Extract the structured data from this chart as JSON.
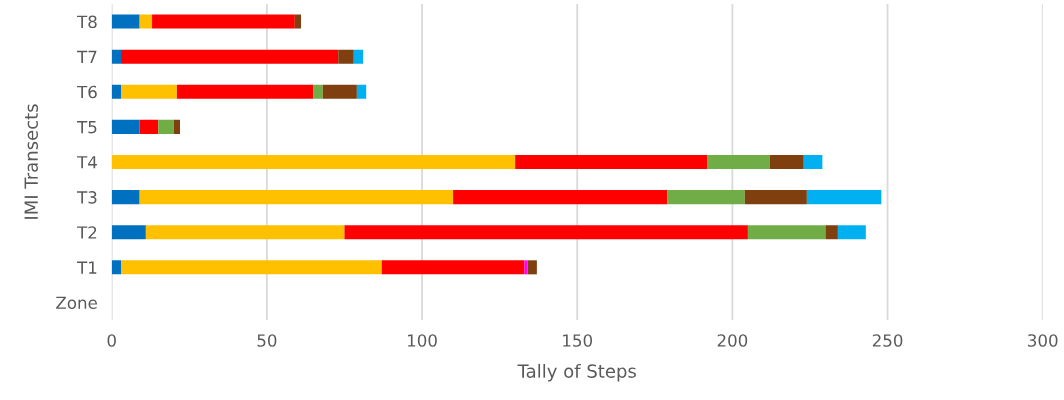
{
  "chart_data": {
    "type": "bar",
    "orientation": "horizontal",
    "stacked": true,
    "xlabel": "Tally of Steps",
    "ylabel": "IMI Transects",
    "categories": [
      "T8",
      "T7",
      "T6",
      "T5",
      "T4",
      "T3",
      "T2",
      "T1",
      "Zone"
    ],
    "series": [
      {
        "color": "#0070c0",
        "values": [
          9,
          3,
          3,
          9,
          0,
          9,
          11,
          3,
          null
        ]
      },
      {
        "color": "#ffc000",
        "values": [
          4,
          0,
          18,
          0,
          130,
          101,
          64,
          84,
          null
        ]
      },
      {
        "color": "#ff0000",
        "values": [
          46,
          70,
          44,
          6,
          62,
          69,
          130,
          46,
          null
        ]
      },
      {
        "color": "#ff00ff",
        "values": [
          0,
          0,
          0,
          0,
          0,
          0,
          0,
          1,
          null
        ]
      },
      {
        "color": "#70ad47",
        "values": [
          0,
          0,
          3,
          5,
          20,
          25,
          25,
          0,
          null
        ]
      },
      {
        "color": "#7f3f0f",
        "values": [
          2,
          5,
          11,
          2,
          11,
          20,
          4,
          3,
          null
        ]
      },
      {
        "color": "#00b0f0",
        "values": [
          0,
          3,
          3,
          0,
          6,
          24,
          9,
          0,
          null
        ]
      }
    ],
    "xlim": [
      0,
      300
    ],
    "xticks": [
      0,
      50,
      100,
      150,
      200,
      250,
      300
    ],
    "grid": "x",
    "legend": false
  }
}
